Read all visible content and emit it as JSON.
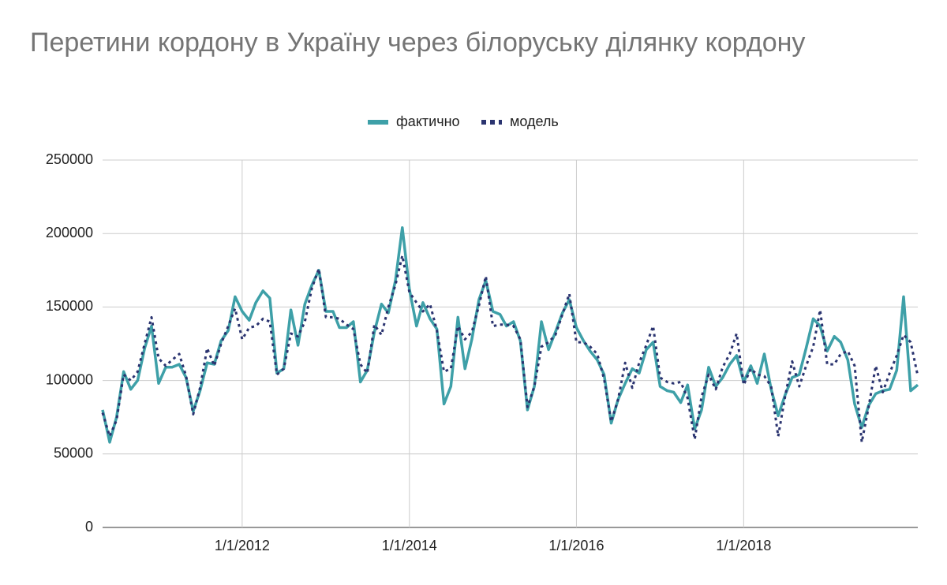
{
  "chart_data": {
    "type": "line",
    "title": "Перетини кордону в Україну через білоруську ділянку кордону",
    "legend": "top",
    "grid": true,
    "x": [
      "2010-05-01",
      "2010-06-01",
      "2010-07-01",
      "2010-08-01",
      "2010-09-01",
      "2010-10-01",
      "2010-11-01",
      "2010-12-01",
      "2011-01-01",
      "2011-02-01",
      "2011-03-01",
      "2011-04-01",
      "2011-05-01",
      "2011-06-01",
      "2011-07-01",
      "2011-08-01",
      "2011-09-01",
      "2011-10-01",
      "2011-11-01",
      "2011-12-01",
      "2012-01-01",
      "2012-02-01",
      "2012-03-01",
      "2012-04-01",
      "2012-05-01",
      "2012-06-01",
      "2012-07-01",
      "2012-08-01",
      "2012-09-01",
      "2012-10-01",
      "2012-11-01",
      "2012-12-01",
      "2013-01-01",
      "2013-02-01",
      "2013-03-01",
      "2013-04-01",
      "2013-05-01",
      "2013-06-01",
      "2013-07-01",
      "2013-08-01",
      "2013-09-01",
      "2013-10-01",
      "2013-11-01",
      "2013-12-01",
      "2014-01-01",
      "2014-02-01",
      "2014-03-01",
      "2014-04-01",
      "2014-05-01",
      "2014-06-01",
      "2014-07-01",
      "2014-08-01",
      "2014-09-01",
      "2014-10-01",
      "2014-11-01",
      "2014-12-01",
      "2015-01-01",
      "2015-02-01",
      "2015-03-01",
      "2015-04-01",
      "2015-05-01",
      "2015-06-01",
      "2015-07-01",
      "2015-08-01",
      "2015-09-01",
      "2015-10-01",
      "2015-11-01",
      "2015-12-01",
      "2016-01-01",
      "2016-02-01",
      "2016-03-01",
      "2016-04-01",
      "2016-05-01",
      "2016-06-01",
      "2016-07-01",
      "2016-08-01",
      "2016-09-01",
      "2016-10-01",
      "2016-11-01",
      "2016-12-01",
      "2017-01-01",
      "2017-02-01",
      "2017-03-01",
      "2017-04-01",
      "2017-05-01",
      "2017-06-01",
      "2017-07-01",
      "2017-08-01",
      "2017-09-01",
      "2017-10-01",
      "2017-11-01",
      "2017-12-01",
      "2018-01-01",
      "2018-02-01",
      "2018-03-01",
      "2018-04-01",
      "2018-05-01",
      "2018-06-01",
      "2018-07-01",
      "2018-08-01",
      "2018-09-01",
      "2018-10-01",
      "2018-11-01",
      "2018-12-01",
      "2019-01-01",
      "2019-02-01",
      "2019-03-01",
      "2019-04-01",
      "2019-05-01",
      "2019-06-01",
      "2019-07-01",
      "2019-08-01",
      "2019-09-01",
      "2019-10-01",
      "2019-11-01",
      "2019-12-01",
      "2020-01-01",
      "2020-02-01"
    ],
    "xlim": [
      "2010-05-01",
      "2020-02-01"
    ],
    "xticks": [
      {
        "value": "2012-01-01",
        "label": "1/1/2012"
      },
      {
        "value": "2014-01-01",
        "label": "1/1/2014"
      },
      {
        "value": "2016-01-01",
        "label": "1/1/2016"
      },
      {
        "value": "2018-01-01",
        "label": "1/1/2018"
      }
    ],
    "ylim": [
      0,
      250000
    ],
    "yticks": [
      0,
      50000,
      100000,
      150000,
      200000,
      250000
    ],
    "series": [
      {
        "name": "фактично",
        "color": "#3ea0a8",
        "dash": "solid",
        "values": [
          80000,
          58000,
          75000,
          106000,
          94000,
          100000,
          122000,
          137000,
          98000,
          109000,
          109000,
          111000,
          102000,
          79000,
          93000,
          112000,
          111000,
          127000,
          134000,
          157000,
          147000,
          141000,
          153000,
          161000,
          156000,
          105000,
          108000,
          148000,
          124000,
          152000,
          165000,
          175000,
          147000,
          147000,
          136000,
          136000,
          140000,
          99000,
          107000,
          133000,
          152000,
          146000,
          168000,
          204000,
          162000,
          137000,
          153000,
          142000,
          135000,
          84000,
          96000,
          143000,
          108000,
          128000,
          155000,
          168000,
          147000,
          145000,
          137000,
          140000,
          127000,
          80000,
          96000,
          140000,
          121000,
          133000,
          146000,
          155000,
          136000,
          127000,
          120000,
          114000,
          104000,
          71000,
          87000,
          98000,
          108000,
          105000,
          121000,
          126000,
          96000,
          93000,
          92000,
          85000,
          97000,
          67000,
          80000,
          109000,
          96000,
          102000,
          111000,
          117000,
          99000,
          110000,
          98000,
          118000,
          94000,
          76000,
          90000,
          102000,
          104000,
          122000,
          142000,
          137000,
          120000,
          130000,
          126000,
          114000,
          84000,
          68000,
          83000,
          91000,
          93000,
          94000,
          107000,
          157000,
          93000,
          97000
        ]
      },
      {
        "name": "модель",
        "color": "#2b3470",
        "dash": "dotted",
        "values": [
          78000,
          62000,
          73000,
          104000,
          100000,
          106000,
          125000,
          143000,
          115000,
          110000,
          114000,
          118000,
          103000,
          77000,
          95000,
          122000,
          110000,
          125000,
          137000,
          149000,
          128000,
          136000,
          137000,
          142000,
          140000,
          104000,
          108000,
          132000,
          130000,
          140000,
          163000,
          176000,
          143000,
          143000,
          142000,
          138000,
          135000,
          111000,
          105000,
          138000,
          131000,
          150000,
          165000,
          185000,
          160000,
          153000,
          147000,
          152000,
          134000,
          106000,
          108000,
          137000,
          128000,
          133000,
          151000,
          171000,
          137000,
          138000,
          138000,
          137000,
          128000,
          82000,
          96000,
          123000,
          126000,
          131000,
          145000,
          159000,
          126000,
          126000,
          123000,
          118000,
          101000,
          72000,
          87000,
          112000,
          95000,
          112000,
          124000,
          137000,
          102000,
          99000,
          98000,
          99000,
          88000,
          60000,
          89000,
          104000,
          94000,
          109000,
          118000,
          132000,
          97000,
          108000,
          104000,
          103000,
          96000,
          62000,
          89000,
          113000,
          96000,
          110000,
          123000,
          148000,
          111000,
          111000,
          118000,
          120000,
          110000,
          58000,
          82000,
          110000,
          92000,
          105000,
          117000,
          131000,
          126000,
          103000
        ]
      }
    ]
  }
}
